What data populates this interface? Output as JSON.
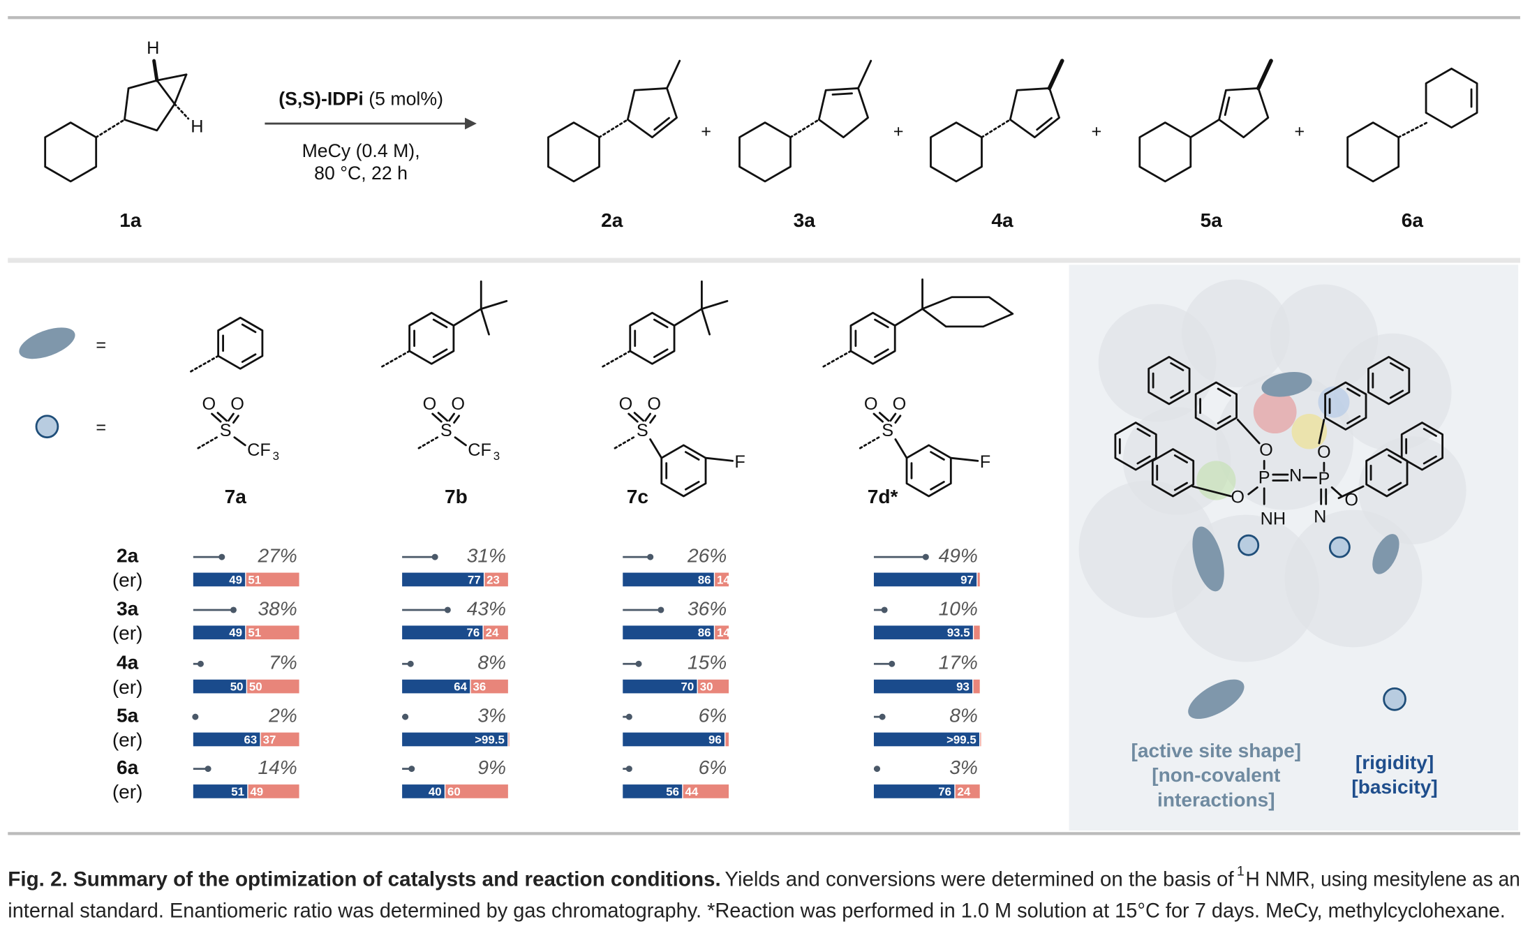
{
  "scheme": {
    "substrate": "1a",
    "products": [
      "2a",
      "3a",
      "4a",
      "5a",
      "6a"
    ],
    "catalyst": "(S,S)-IDPi",
    "loading": "(5 mol%)",
    "conditions": [
      "MeCy (0.4 M),",
      "80 °C, 22 h"
    ]
  },
  "symbols": {
    "plus": "+",
    "equals": "="
  },
  "atoms": {
    "h": "H",
    "o": "O",
    "s": "S",
    "cf": "CF",
    "sub3": "3",
    "f": "F",
    "p": "P",
    "n": "N",
    "nh": "NH"
  },
  "chart_data": {
    "type": "bar",
    "catalysts": [
      "7a",
      "7b",
      "7c",
      "7d*"
    ],
    "rows": [
      "2a",
      "3a",
      "4a",
      "5a",
      "6a"
    ],
    "row_sublabel": "(er)",
    "colors": {
      "yield": "#4a5868",
      "major": "#1a4b8c",
      "minor": "#e8857a"
    },
    "panels": [
      {
        "yields": [
          27,
          38,
          7,
          2,
          14
        ],
        "yield_labels": [
          "27%",
          "38%",
          "7%",
          "2%",
          "14%"
        ],
        "er_major": [
          49,
          49,
          50,
          63,
          51
        ],
        "er_major_labels": [
          "49",
          "49",
          "50",
          "63",
          "51"
        ],
        "er_minor": [
          51,
          51,
          50,
          37,
          49
        ],
        "er_minor_labels": [
          "51",
          "51",
          "50",
          "37",
          "49"
        ]
      },
      {
        "yields": [
          31,
          43,
          8,
          3,
          9
        ],
        "yield_labels": [
          "31%",
          "43%",
          "8%",
          "3%",
          "9%"
        ],
        "er_major": [
          77,
          76,
          64,
          99.5,
          40
        ],
        "er_major_labels": [
          "77",
          "76",
          "64",
          ">99.5",
          "40"
        ],
        "er_minor": [
          23,
          24,
          36,
          0.5,
          60
        ],
        "er_minor_labels": [
          "23",
          "24",
          "36",
          null,
          "60"
        ]
      },
      {
        "yields": [
          26,
          36,
          15,
          6,
          6
        ],
        "yield_labels": [
          "26%",
          "36%",
          "15%",
          "6%",
          "6%"
        ],
        "er_major": [
          86,
          86,
          70,
          96,
          56
        ],
        "er_major_labels": [
          "86",
          "86",
          "70",
          "96",
          "56"
        ],
        "er_minor": [
          14,
          14,
          30,
          4,
          44
        ],
        "er_minor_labels": [
          "14",
          "14",
          "30",
          null,
          "44"
        ]
      },
      {
        "yields": [
          49,
          10,
          17,
          8,
          3
        ],
        "yield_labels": [
          "49%",
          "10%",
          "17%",
          "8%",
          "3%"
        ],
        "er_major": [
          97,
          93.5,
          93,
          99.5,
          76
        ],
        "er_major_labels": [
          "97",
          "93.5",
          "93",
          ">99.5",
          "76"
        ],
        "er_minor": [
          3,
          6.5,
          7,
          0.5,
          24
        ],
        "er_minor_labels": [
          null,
          null,
          null,
          null,
          "24"
        ]
      }
    ]
  },
  "panel_labels": {
    "shape": [
      "[active site shape]",
      "[non-covalent",
      "interactions]"
    ],
    "acidity": [
      "[rigidity]",
      "[basicity]"
    ]
  },
  "caption": {
    "title": "Fig. 2. Summary of the optimization of catalysts and reaction conditions.",
    "parts": [
      "Yields and conversions were determined on the basis of ",
      "1",
      "H NMR, using mesitylene as an",
      "internal standard. Enantiomeric ratio was determined by gas chromatography. *Reaction was performed in 1.0 M solution at 15°C for 7 days. MeCy, methylcyclohexane."
    ]
  }
}
